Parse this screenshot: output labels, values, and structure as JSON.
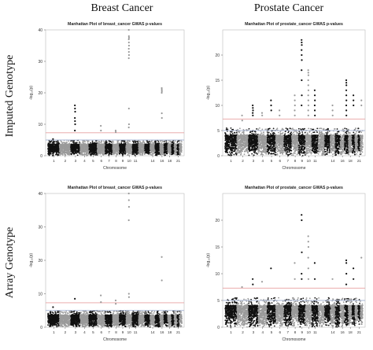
{
  "column_headers": [
    "Breast Cancer",
    "Prostate Cancer"
  ],
  "row_headers": [
    "Imputed Genotype",
    "Array Genotype"
  ],
  "colors": {
    "dark_chrom": "#111111",
    "light_chrom": "#9a9a9a",
    "significance_line": "#e8a0a0",
    "suggestive_line": "#a9b7d6"
  },
  "chart_data": [
    {
      "type": "scatter",
      "subtype": "manhattan",
      "title": "Manhattan Plot of breast_cancer GWAS p-values",
      "xlabel": "Chromosome",
      "ylabel": "-log₁₀(p)",
      "ylim": [
        0,
        40
      ],
      "yticks": [
        "0",
        "10",
        "20",
        "30",
        "40"
      ],
      "xticks": [
        "1",
        "2",
        "3",
        "4",
        "5",
        "6",
        "7",
        "8",
        "9",
        "10",
        "11",
        "14",
        "16",
        "18",
        "21"
      ],
      "significance_line": 7.3,
      "suggestive_line": 5,
      "baseline_max": 4.5,
      "peaks": [
        {
          "chrom": 1,
          "values": [
            5.3
          ]
        },
        {
          "chrom": 3,
          "values": [
            16,
            15,
            14,
            12,
            11,
            10,
            8
          ]
        },
        {
          "chrom": 6,
          "values": [
            9.5,
            8
          ]
        },
        {
          "chrom": 8,
          "values": [
            8,
            7.5
          ]
        },
        {
          "chrom": 10,
          "values": [
            40,
            38,
            37.5,
            37,
            36,
            35,
            34,
            33,
            32,
            31,
            15,
            10,
            9
          ]
        },
        {
          "chrom": 16,
          "values": [
            21.5,
            21,
            20.5,
            20,
            13.5,
            12
          ]
        }
      ]
    },
    {
      "type": "scatter",
      "subtype": "manhattan",
      "title": "Manhattan Plot of prostate_cancer GWAS p-values",
      "xlabel": "Chromosome",
      "ylabel": "-log₁₀(p)",
      "ylim": [
        0,
        25
      ],
      "yticks": [
        "0",
        "5",
        "10",
        "15",
        "20"
      ],
      "xticks": [
        "1",
        "2",
        "3",
        "4",
        "5",
        "6",
        "7",
        "8",
        "9",
        "10",
        "11",
        "14",
        "16",
        "18",
        "21"
      ],
      "significance_line": 7.3,
      "suggestive_line": 5,
      "baseline_max": 5,
      "peaks": [
        {
          "chrom": 2,
          "values": [
            8,
            7
          ]
        },
        {
          "chrom": 3,
          "values": [
            10,
            9.5,
            9,
            8.5,
            8
          ]
        },
        {
          "chrom": 4,
          "values": [
            8.5,
            8
          ]
        },
        {
          "chrom": 5,
          "values": [
            11,
            10,
            9
          ]
        },
        {
          "chrom": 6,
          "values": [
            9,
            8
          ]
        },
        {
          "chrom": 8,
          "values": [
            12,
            11,
            10,
            9,
            8
          ]
        },
        {
          "chrom": 9,
          "values": [
            23,
            22.5,
            22,
            21,
            20,
            19,
            17,
            15,
            12,
            10
          ]
        },
        {
          "chrom": 10,
          "values": [
            17,
            16.5,
            16,
            15,
            14,
            13,
            12,
            11,
            10,
            9,
            8
          ]
        },
        {
          "chrom": 11,
          "values": [
            13,
            12,
            11,
            10,
            9,
            8
          ]
        },
        {
          "chrom": 14,
          "values": [
            10,
            9,
            8
          ]
        },
        {
          "chrom": 17,
          "values": [
            15,
            14.5,
            14,
            13,
            12,
            11,
            10,
            9,
            8
          ]
        },
        {
          "chrom": 19,
          "values": [
            12,
            11,
            10
          ]
        },
        {
          "chrom": 22,
          "values": [
            11,
            10
          ]
        }
      ]
    },
    {
      "type": "scatter",
      "subtype": "manhattan",
      "title": "Manhattan Plot of breast_cancer GWAS p-values",
      "xlabel": "Chromosome",
      "ylabel": "-log₁₀(p)",
      "ylim": [
        0,
        40
      ],
      "yticks": [
        "0",
        "10",
        "20",
        "30",
        "40"
      ],
      "xticks": [
        "1",
        "2",
        "3",
        "4",
        "5",
        "6",
        "7",
        "8",
        "9",
        "10",
        "11",
        "14",
        "16",
        "18",
        "21"
      ],
      "significance_line": 7.3,
      "suggestive_line": 5,
      "baseline_max": 4.5,
      "peaks": [
        {
          "chrom": 1,
          "values": [
            6
          ]
        },
        {
          "chrom": 3,
          "values": [
            8.5
          ]
        },
        {
          "chrom": 6,
          "values": [
            9.5,
            7.5
          ]
        },
        {
          "chrom": 8,
          "values": [
            8,
            7
          ]
        },
        {
          "chrom": 10,
          "values": [
            40,
            38,
            36,
            32,
            10,
            9
          ]
        },
        {
          "chrom": 16,
          "values": [
            21,
            14
          ]
        }
      ]
    },
    {
      "type": "scatter",
      "subtype": "manhattan",
      "title": "Manhattan Plot of prostate_cancer GWAS p-values",
      "xlabel": "Chromosome",
      "ylabel": "-log₁₀(p)",
      "ylim": [
        0,
        25
      ],
      "yticks": [
        "0",
        "5",
        "10",
        "15",
        "20"
      ],
      "xticks": [
        "1",
        "2",
        "3",
        "4",
        "5",
        "6",
        "7",
        "8",
        "9",
        "10",
        "11",
        "14",
        "16",
        "18",
        "21"
      ],
      "significance_line": 7.3,
      "suggestive_line": 5,
      "baseline_max": 5,
      "peaks": [
        {
          "chrom": 2,
          "values": [
            7.5
          ]
        },
        {
          "chrom": 3,
          "values": [
            9,
            8
          ]
        },
        {
          "chrom": 4,
          "values": [
            8.5
          ]
        },
        {
          "chrom": 5,
          "values": [
            11
          ]
        },
        {
          "chrom": 8,
          "values": [
            12,
            9
          ]
        },
        {
          "chrom": 9,
          "values": [
            21,
            20,
            14,
            10,
            9
          ]
        },
        {
          "chrom": 10,
          "values": [
            17,
            16,
            15,
            13,
            11,
            9
          ]
        },
        {
          "chrom": 11,
          "values": [
            12,
            9
          ]
        },
        {
          "chrom": 14,
          "values": [
            9
          ]
        },
        {
          "chrom": 17,
          "values": [
            12.5,
            12,
            10,
            8
          ]
        },
        {
          "chrom": 19,
          "values": [
            11,
            9
          ]
        },
        {
          "chrom": 22,
          "values": [
            13
          ]
        }
      ]
    }
  ]
}
